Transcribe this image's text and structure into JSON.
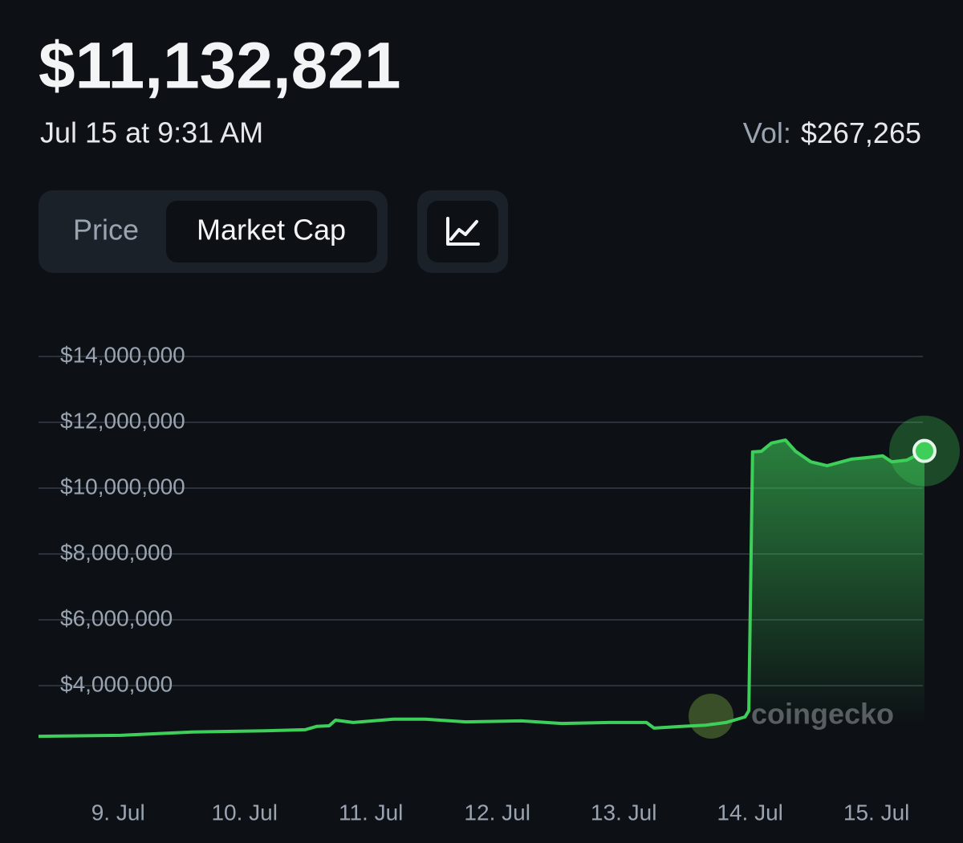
{
  "header": {
    "value": "$11,132,821",
    "timestamp": "Jul 15 at 9:31 AM",
    "volume_label": "Vol:",
    "volume": "$267,265"
  },
  "tabs": [
    "Price",
    "Market Cap"
  ],
  "watermark": "coingecko",
  "chart_data": {
    "type": "line",
    "color": "#3ecf5a",
    "grid": true,
    "x": [
      8.37,
      9.02,
      9.59,
      10.16,
      10.48,
      10.57,
      10.67,
      10.72,
      10.86,
      11.18,
      11.43,
      11.75,
      12.19,
      12.51,
      12.89,
      13.18,
      13.24,
      13.46,
      13.65,
      13.81,
      13.96,
      13.99,
      14.02,
      14.09,
      14.17,
      14.28,
      14.36,
      14.48,
      14.61,
      14.8,
      14.93,
      15.05,
      15.12,
      15.24,
      15.38
    ],
    "values": [
      2460000,
      2490000,
      2590000,
      2630000,
      2660000,
      2760000,
      2780000,
      2950000,
      2880000,
      2980000,
      2980000,
      2900000,
      2930000,
      2850000,
      2880000,
      2880000,
      2710000,
      2760000,
      2800000,
      2880000,
      3050000,
      3240000,
      11100000,
      11120000,
      11370000,
      11460000,
      11120000,
      10800000,
      10680000,
      10880000,
      10930000,
      10980000,
      10800000,
      10850000,
      11130000
    ],
    "xlim": [
      8.37,
      15.38
    ],
    "xticks": [
      {
        "value": 9,
        "label": "9. Jul"
      },
      {
        "value": 10,
        "label": "10. Jul"
      },
      {
        "value": 11,
        "label": "11. Jul"
      },
      {
        "value": 12,
        "label": "12. Jul"
      },
      {
        "value": 13,
        "label": "13. Jul"
      },
      {
        "value": 14,
        "label": "14. Jul"
      },
      {
        "value": 15,
        "label": "15. Jul"
      }
    ],
    "ylim": [
      2000000,
      14000000
    ],
    "yticks": [
      {
        "value": 14000000,
        "label": "$14,000,000"
      },
      {
        "value": 12000000,
        "label": "$12,000,000"
      },
      {
        "value": 10000000,
        "label": "$10,000,000"
      },
      {
        "value": 8000000,
        "label": "$8,000,000"
      },
      {
        "value": 6000000,
        "label": "$6,000,000"
      },
      {
        "value": 4000000,
        "label": "$4,000,000"
      }
    ]
  }
}
